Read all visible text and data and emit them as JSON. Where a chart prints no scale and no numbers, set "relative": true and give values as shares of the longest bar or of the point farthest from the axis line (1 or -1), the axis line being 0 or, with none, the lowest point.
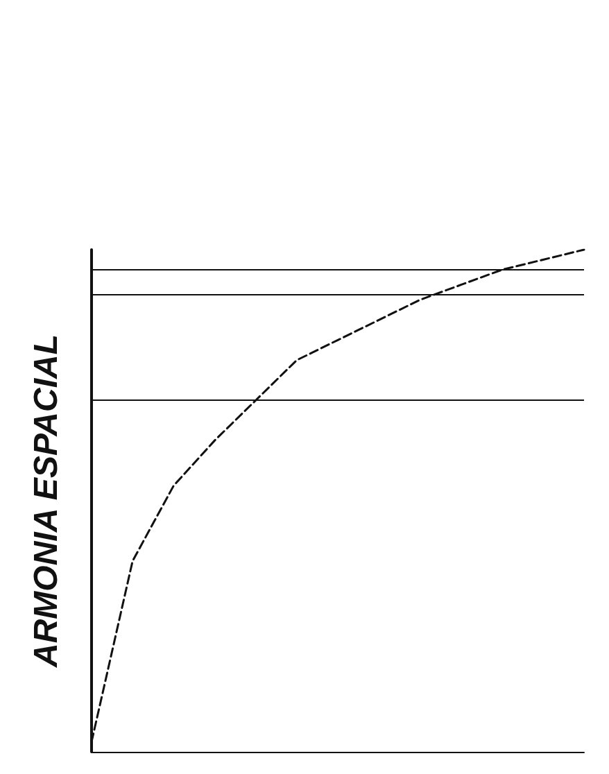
{
  "chart_data": {
    "type": "line",
    "relative": true,
    "ylabel": "ARMONIA ESPACIAL",
    "categories": [
      null,
      null,
      null,
      null,
      null,
      null,
      null,
      null,
      null,
      null,
      null,
      null,
      null
    ],
    "series": [
      {
        "color": "#111111",
        "values": [
          0.02,
          0.38,
          0.53,
          0.62,
          0.7,
          0.78,
          0.82,
          0.86,
          0.9,
          0.93,
          0.96,
          0.98,
          1.0
        ]
      }
    ],
    "ref_lines": [
      {
        "axis": "y",
        "value": 0.7,
        "color": "#111111"
      },
      {
        "axis": "y",
        "value": 0.91,
        "color": "#111111"
      },
      {
        "axis": "y",
        "value": 0.96,
        "color": "#111111"
      }
    ],
    "line_style": "dashed",
    "marker": "none"
  }
}
